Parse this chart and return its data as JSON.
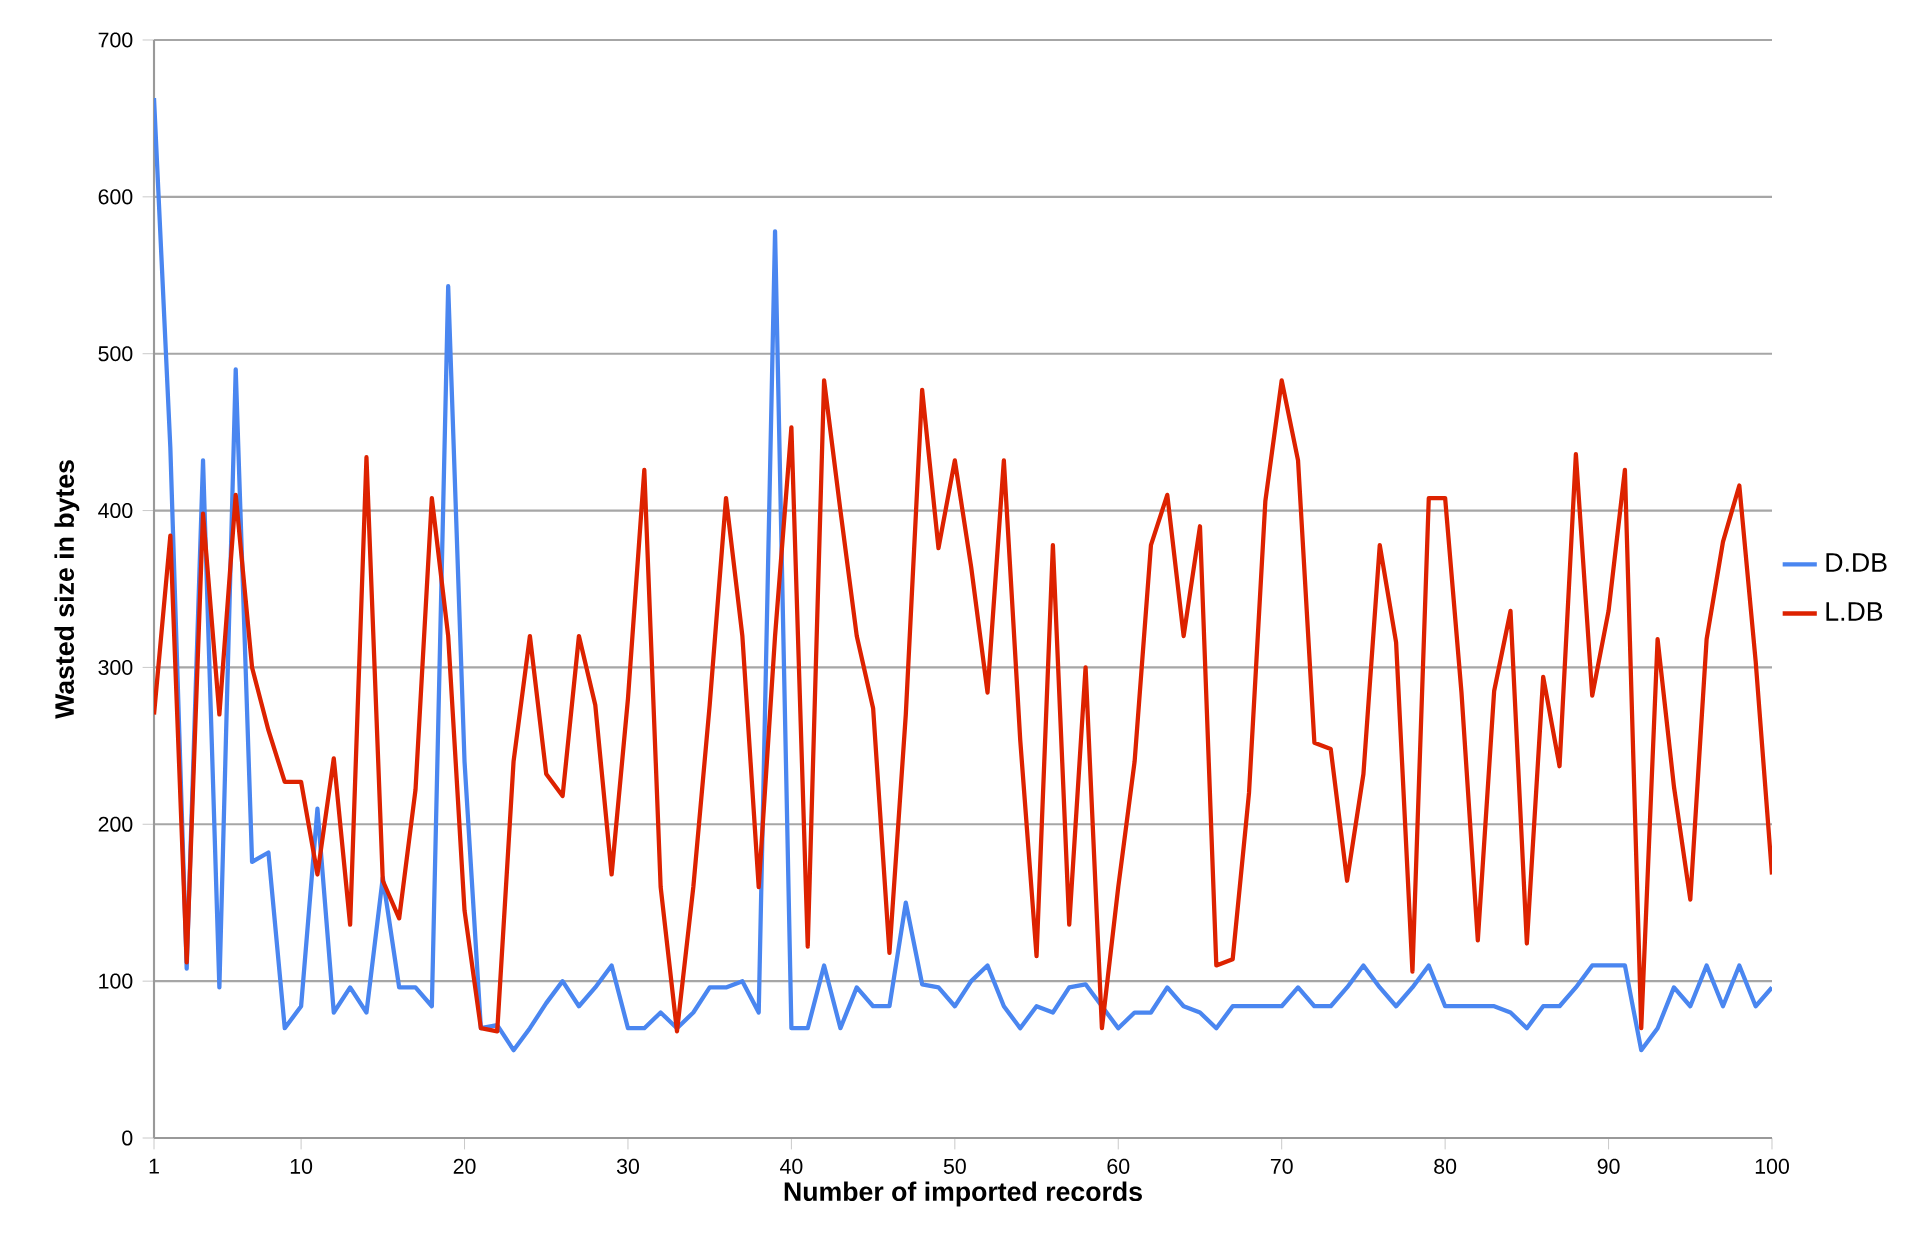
{
  "chart_data": {
    "type": "line",
    "xlabel": "Number of imported records",
    "ylabel": "Wasted size in bytes",
    "x": [
      1,
      2,
      3,
      4,
      5,
      6,
      7,
      8,
      9,
      10,
      11,
      12,
      13,
      14,
      15,
      16,
      17,
      18,
      19,
      20,
      21,
      22,
      23,
      24,
      25,
      26,
      27,
      28,
      29,
      30,
      31,
      32,
      33,
      34,
      35,
      36,
      37,
      38,
      39,
      40,
      41,
      42,
      43,
      44,
      45,
      46,
      47,
      48,
      49,
      50,
      51,
      52,
      53,
      54,
      55,
      56,
      57,
      58,
      59,
      60,
      61,
      62,
      63,
      64,
      65,
      66,
      67,
      68,
      69,
      70,
      71,
      72,
      73,
      74,
      75,
      76,
      77,
      78,
      79,
      80,
      81,
      82,
      83,
      84,
      85,
      86,
      87,
      88,
      89,
      90,
      91,
      92,
      93,
      94,
      95,
      96,
      97,
      98,
      99,
      100
    ],
    "series": [
      {
        "name": "D.DB",
        "color": "#4a86f0",
        "values": [
          663,
          440,
          108,
          432,
          96,
          490,
          176,
          182,
          70,
          84,
          210,
          80,
          96,
          80,
          166,
          96,
          96,
          84,
          543,
          240,
          70,
          72,
          56,
          70,
          86,
          100,
          84,
          96,
          110,
          70,
          70,
          80,
          70,
          80,
          96,
          96,
          100,
          80,
          578,
          70,
          70,
          110,
          70,
          96,
          84,
          84,
          150,
          98,
          96,
          84,
          100,
          110,
          84,
          70,
          84,
          80,
          96,
          98,
          84,
          70,
          80,
          80,
          96,
          84,
          80,
          70,
          84,
          84,
          84,
          84,
          96,
          84,
          84,
          96,
          110,
          96,
          84,
          96,
          110,
          84,
          84,
          84,
          84,
          80,
          70,
          84,
          84,
          96,
          110,
          110,
          110,
          56,
          70,
          96,
          84,
          110,
          84,
          110,
          84,
          96
        ]
      },
      {
        "name": "L.DB",
        "color": "#dd2200",
        "values": [
          270,
          384,
          112,
          398,
          270,
          410,
          300,
          260,
          227,
          227,
          168,
          242,
          136,
          434,
          164,
          140,
          222,
          408,
          320,
          145,
          70,
          68,
          240,
          320,
          232,
          218,
          320,
          276,
          168,
          280,
          426,
          160,
          68,
          160,
          276,
          408,
          320,
          160,
          320,
          453,
          122,
          483,
          400,
          320,
          274,
          118,
          270,
          477,
          376,
          432,
          364,
          284,
          432,
          254,
          116,
          378,
          136,
          300,
          70,
          160,
          240,
          378,
          410,
          320,
          390,
          110,
          114,
          220,
          406,
          483,
          432,
          252,
          248,
          164,
          232,
          378,
          316,
          106,
          408,
          408,
          284,
          126,
          285,
          336,
          124,
          294,
          237,
          436,
          282,
          336,
          426,
          70,
          318,
          224,
          152,
          318,
          380,
          416,
          304,
          168
        ]
      }
    ],
    "xlim": [
      1,
      100
    ],
    "xticks": [
      1,
      10,
      20,
      30,
      40,
      50,
      60,
      70,
      80,
      90,
      100
    ],
    "ylim": [
      0,
      700
    ],
    "yticks": [
      0,
      100,
      200,
      300,
      400,
      500,
      600,
      700
    ],
    "grid": "y",
    "legend": "right",
    "marker": "none",
    "line_style": "solid"
  }
}
